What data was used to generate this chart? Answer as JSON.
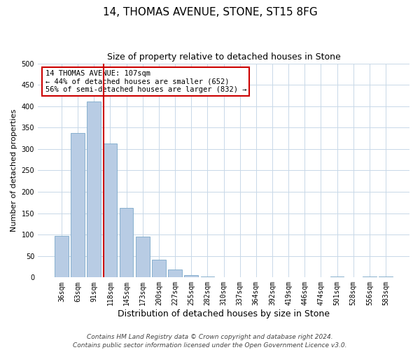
{
  "title": "14, THOMAS AVENUE, STONE, ST15 8FG",
  "subtitle": "Size of property relative to detached houses in Stone",
  "xlabel": "Distribution of detached houses by size in Stone",
  "ylabel": "Number of detached properties",
  "bin_labels": [
    "36sqm",
    "63sqm",
    "91sqm",
    "118sqm",
    "145sqm",
    "173sqm",
    "200sqm",
    "227sqm",
    "255sqm",
    "282sqm",
    "310sqm",
    "337sqm",
    "364sqm",
    "392sqm",
    "419sqm",
    "446sqm",
    "474sqm",
    "501sqm",
    "528sqm",
    "556sqm",
    "583sqm"
  ],
  "bar_values": [
    97,
    338,
    411,
    313,
    163,
    96,
    42,
    19,
    6,
    2,
    0,
    0,
    0,
    0,
    0,
    0,
    0,
    2,
    0,
    2,
    2
  ],
  "bar_color": "#b8cce4",
  "bar_edge_color": "#7ba7c9",
  "vline_index": 3,
  "vline_color": "#cc0000",
  "ylim": [
    0,
    500
  ],
  "yticks": [
    0,
    50,
    100,
    150,
    200,
    250,
    300,
    350,
    400,
    450,
    500
  ],
  "annotation_title": "14 THOMAS AVENUE: 107sqm",
  "annotation_line1": "← 44% of detached houses are smaller (652)",
  "annotation_line2": "56% of semi-detached houses are larger (832) →",
  "annotation_box_color": "#ffffff",
  "annotation_box_edge_color": "#cc0000",
  "footer1": "Contains HM Land Registry data © Crown copyright and database right 2024.",
  "footer2": "Contains public sector information licensed under the Open Government Licence v3.0.",
  "background_color": "#ffffff",
  "grid_color": "#c8d8e8",
  "title_fontsize": 11,
  "subtitle_fontsize": 9,
  "xlabel_fontsize": 9,
  "ylabel_fontsize": 8,
  "tick_fontsize": 7,
  "annotation_fontsize": 7.5,
  "footer_fontsize": 6.5
}
